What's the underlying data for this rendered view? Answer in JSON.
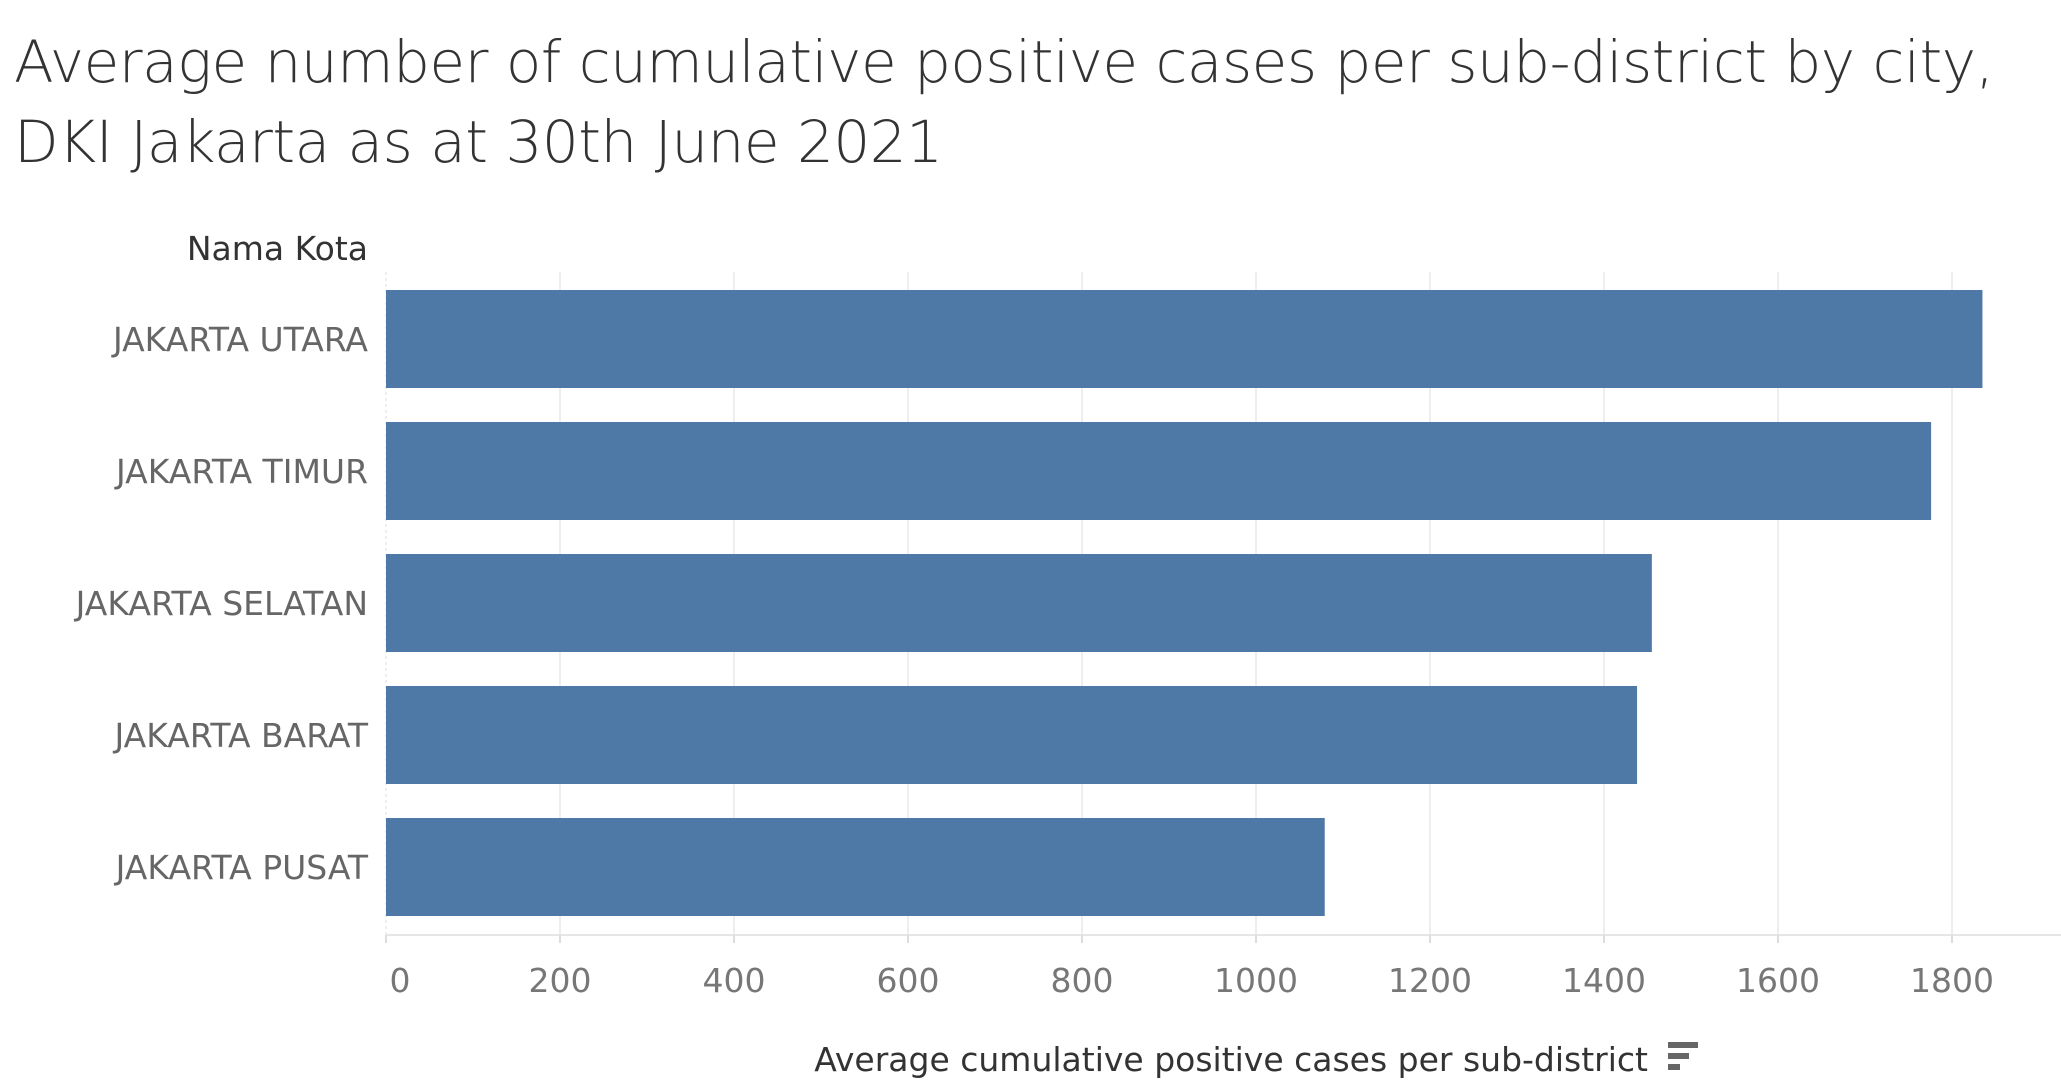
{
  "chart_data": {
    "type": "bar",
    "orientation": "horizontal",
    "title": "Average number of cumulative positive cases per sub-district by city, DKI Jakarta as at 30th June 2021",
    "row_header": "Nama Kota",
    "xlabel": "Average cumulative positive cases per sub-district",
    "categories": [
      "JAKARTA UTARA",
      "JAKARTA TIMUR",
      "JAKARTA SELATAN",
      "JAKARTA BARAT",
      "JAKARTA PUSAT"
    ],
    "values": [
      1835,
      1776,
      1455,
      1438,
      1079
    ],
    "xlim": [
      0,
      1900
    ],
    "xticks": [
      0,
      200,
      400,
      600,
      800,
      1000,
      1200,
      1400,
      1600,
      1800
    ],
    "grid": true,
    "bar_color": "#4e79a7",
    "sort_icon": "sort-descending-icon"
  }
}
